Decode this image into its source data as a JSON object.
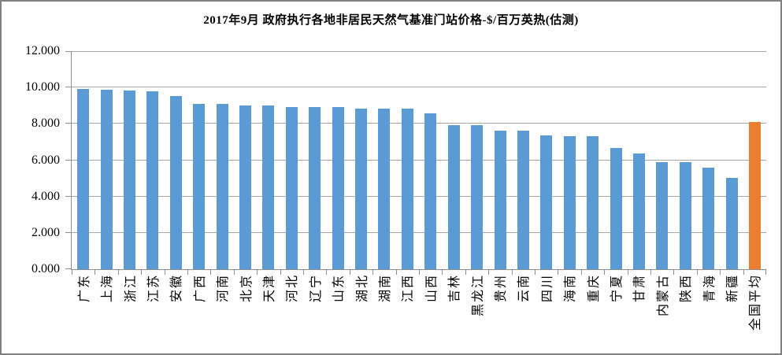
{
  "window": {
    "background": "#FFFFFF",
    "border_color": "#808080"
  },
  "chart_data": {
    "type": "bar",
    "title": "2017年9月 政府执行各地非居民天然气基准门站价格-$/百万英热(估测)",
    "xlabel": "",
    "ylabel": "",
    "ylim": [
      0,
      12
    ],
    "y_tick_step": 2,
    "y_ticks": [
      "0.000",
      "2.000",
      "4.000",
      "6.000",
      "8.000",
      "10.000",
      "12.000"
    ],
    "grid": "horizontal",
    "legend": "none",
    "categories": [
      "广东",
      "上海",
      "浙江",
      "江苏",
      "安徽",
      "广西",
      "河南",
      "北京",
      "天津",
      "河北",
      "辽宁",
      "山东",
      "湖北",
      "湖南",
      "江西",
      "山西",
      "吉林",
      "黑龙江",
      "贵州",
      "云南",
      "四川",
      "海南",
      "重庆",
      "宁夏",
      "甘肃",
      "内蒙古",
      "陕西",
      "青海",
      "新疆",
      "全国平均"
    ],
    "values": [
      9.9,
      9.89,
      9.85,
      9.81,
      9.51,
      9.08,
      9.08,
      9.0,
      9.0,
      8.93,
      8.93,
      8.93,
      8.85,
      8.85,
      8.85,
      8.58,
      7.92,
      7.92,
      7.63,
      7.63,
      7.37,
      7.31,
      7.31,
      6.68,
      6.36,
      5.91,
      5.91,
      5.57,
      5.02,
      8.11
    ],
    "colors": {
      "bar": "#5B9BD5",
      "highlight": "#ED7D31",
      "gridline": "#A6A6A6",
      "axis": "#8C8C8C",
      "text": "#000000"
    },
    "highlight_category": "全国平均"
  }
}
